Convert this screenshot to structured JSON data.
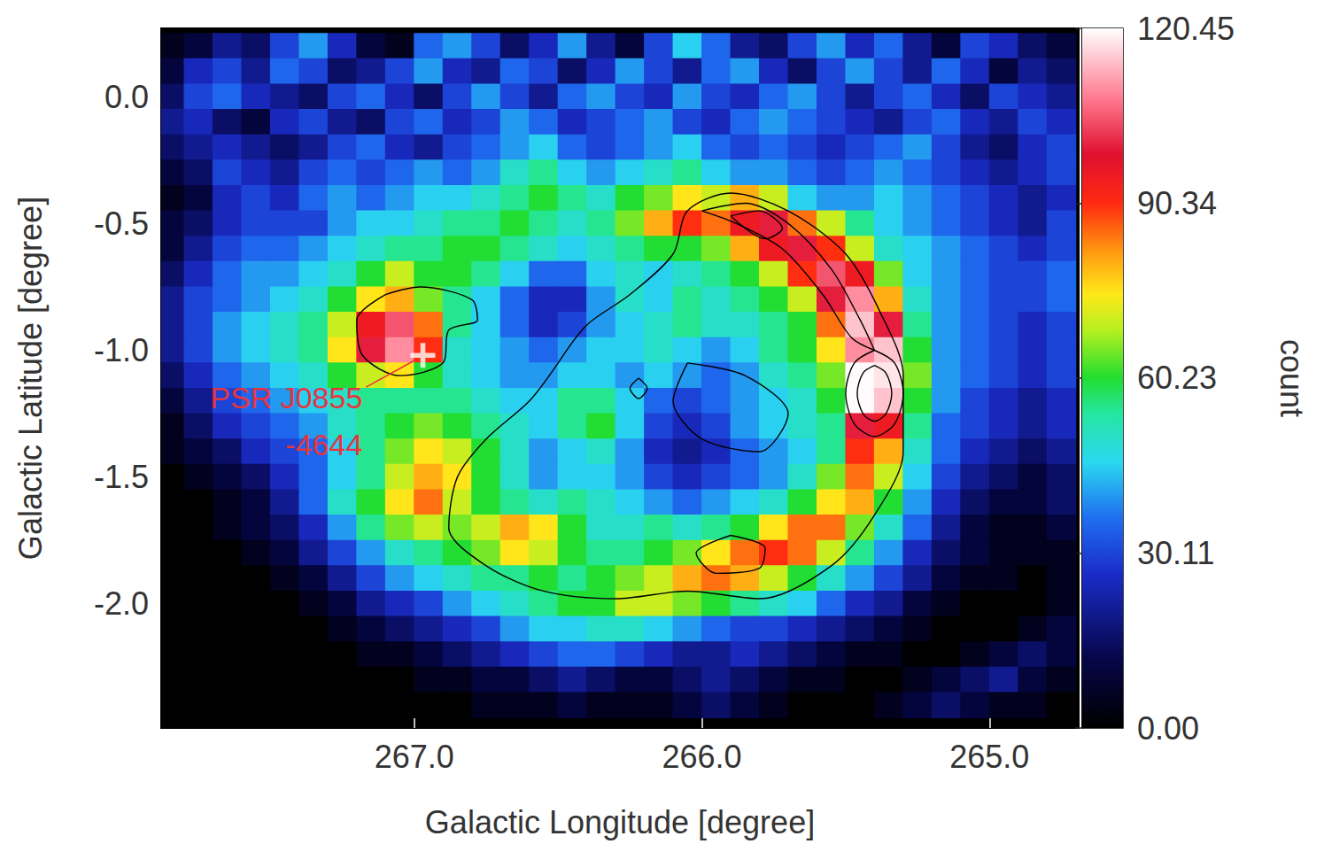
{
  "chart_data": {
    "type": "heatmap",
    "xlabel": "Galactic Longitude [degree]",
    "ylabel": "Galactic Latitude [degree]",
    "xlim": [
      267.88,
      264.69
    ],
    "ylim": [
      -2.49,
      0.27
    ],
    "xticks": [
      {
        "value": 267,
        "label": "267.0"
      },
      {
        "value": 266,
        "label": "266.0"
      },
      {
        "value": 265,
        "label": "265.0"
      }
    ],
    "yticks": [
      {
        "value": 0,
        "label": "0.0"
      },
      -0.5,
      {
        "value": -1,
        "label": "-1.0"
      },
      -1.5,
      {
        "value": -2,
        "label": "-2.0"
      }
    ],
    "grid": false,
    "x": [
      267.85,
      267.75,
      267.65,
      267.55,
      267.45,
      267.35,
      267.25,
      267.15,
      267.05,
      266.95,
      266.85,
      266.75,
      266.65,
      266.55,
      266.45,
      266.35,
      266.25,
      266.15,
      266.05,
      265.95,
      265.85,
      265.75,
      265.65,
      265.55,
      265.45,
      265.35,
      265.25,
      265.15,
      265.05,
      264.95,
      264.85,
      264.75
    ],
    "y": [
      0.2,
      0.1,
      0,
      -0.1,
      -0.2,
      -0.3,
      -0.4,
      -0.5,
      -0.6,
      -0.7,
      -0.8,
      -0.9,
      -1,
      -1.1,
      -1.2,
      -1.3,
      -1.4,
      -1.5,
      -1.6,
      -1.7,
      -1.8,
      -1.9,
      -2,
      -2.1,
      -2.2,
      -2.3,
      -2.4
    ],
    "cells": [
      [
        5,
        10,
        20,
        15,
        30,
        40,
        25,
        10,
        5,
        35,
        40,
        30,
        15,
        25,
        40,
        20,
        10,
        30,
        45,
        35,
        20,
        15,
        30,
        40,
        25,
        35,
        20,
        10,
        30,
        25,
        15,
        10
      ],
      [
        10,
        25,
        30,
        20,
        35,
        30,
        15,
        20,
        30,
        40,
        25,
        20,
        35,
        30,
        15,
        25,
        40,
        30,
        20,
        35,
        40,
        25,
        15,
        30,
        40,
        30,
        20,
        35,
        25,
        10,
        20,
        15
      ],
      [
        15,
        30,
        35,
        25,
        20,
        15,
        30,
        35,
        25,
        15,
        30,
        40,
        30,
        20,
        35,
        40,
        30,
        25,
        40,
        30,
        25,
        35,
        40,
        30,
        20,
        30,
        35,
        25,
        15,
        30,
        25,
        20
      ],
      [
        20,
        25,
        15,
        10,
        25,
        30,
        20,
        15,
        30,
        35,
        25,
        30,
        40,
        35,
        25,
        30,
        35,
        40,
        30,
        25,
        35,
        40,
        35,
        30,
        25,
        20,
        30,
        35,
        25,
        20,
        30,
        25
      ],
      [
        15,
        20,
        25,
        20,
        15,
        20,
        30,
        35,
        25,
        20,
        30,
        35,
        40,
        45,
        35,
        30,
        35,
        40,
        45,
        35,
        30,
        35,
        30,
        25,
        30,
        35,
        40,
        30,
        20,
        15,
        25,
        30
      ],
      [
        10,
        15,
        30,
        25,
        20,
        30,
        35,
        30,
        35,
        40,
        35,
        40,
        50,
        55,
        45,
        40,
        45,
        50,
        55,
        45,
        40,
        40,
        35,
        30,
        35,
        40,
        35,
        30,
        25,
        20,
        25,
        30
      ],
      [
        5,
        10,
        25,
        30,
        25,
        35,
        40,
        35,
        40,
        45,
        45,
        50,
        55,
        60,
        55,
        50,
        60,
        65,
        75,
        70,
        80,
        70,
        45,
        40,
        40,
        45,
        40,
        35,
        30,
        25,
        20,
        25
      ],
      [
        10,
        15,
        25,
        30,
        30,
        30,
        40,
        45,
        45,
        50,
        55,
        55,
        60,
        55,
        50,
        55,
        65,
        80,
        90,
        85,
        95,
        100,
        85,
        70,
        55,
        45,
        40,
        35,
        30,
        25,
        20,
        30
      ],
      [
        10,
        20,
        30,
        35,
        35,
        40,
        45,
        50,
        55,
        55,
        60,
        60,
        55,
        50,
        45,
        50,
        55,
        60,
        60,
        65,
        80,
        95,
        100,
        90,
        70,
        50,
        45,
        40,
        35,
        30,
        25,
        30
      ],
      [
        15,
        25,
        35,
        40,
        40,
        45,
        50,
        60,
        70,
        60,
        60,
        55,
        45,
        35,
        35,
        45,
        50,
        45,
        50,
        55,
        60,
        70,
        90,
        105,
        95,
        65,
        45,
        40,
        35,
        30,
        30,
        35
      ],
      [
        20,
        30,
        35,
        40,
        45,
        50,
        60,
        75,
        80,
        65,
        55,
        45,
        35,
        25,
        25,
        40,
        50,
        45,
        55,
        50,
        55,
        60,
        70,
        100,
        110,
        80,
        50,
        40,
        35,
        30,
        30,
        35
      ],
      [
        20,
        30,
        40,
        45,
        50,
        55,
        70,
        95,
        105,
        85,
        55,
        45,
        35,
        25,
        30,
        40,
        45,
        50,
        55,
        50,
        50,
        55,
        60,
        85,
        115,
        100,
        55,
        40,
        35,
        30,
        25,
        30
      ],
      [
        20,
        30,
        40,
        45,
        50,
        55,
        75,
        100,
        110,
        90,
        50,
        45,
        40,
        35,
        40,
        45,
        45,
        50,
        45,
        40,
        45,
        55,
        60,
        75,
        110,
        115,
        60,
        40,
        35,
        30,
        25,
        30
      ],
      [
        15,
        25,
        35,
        40,
        45,
        50,
        60,
        70,
        75,
        60,
        50,
        45,
        40,
        40,
        45,
        45,
        40,
        45,
        40,
        35,
        40,
        50,
        55,
        65,
        120,
        118,
        65,
        40,
        35,
        30,
        25,
        30
      ],
      [
        10,
        20,
        30,
        35,
        40,
        45,
        50,
        55,
        55,
        55,
        55,
        50,
        45,
        45,
        55,
        55,
        45,
        35,
        30,
        35,
        40,
        45,
        50,
        60,
        120,
        115,
        60,
        40,
        30,
        25,
        20,
        25
      ],
      [
        5,
        15,
        25,
        30,
        35,
        40,
        50,
        55,
        60,
        65,
        60,
        55,
        50,
        45,
        55,
        60,
        45,
        30,
        25,
        30,
        40,
        45,
        50,
        55,
        100,
        95,
        55,
        35,
        30,
        25,
        20,
        25
      ],
      [
        5,
        10,
        15,
        25,
        30,
        35,
        45,
        55,
        65,
        75,
        70,
        60,
        50,
        40,
        45,
        50,
        40,
        25,
        20,
        25,
        35,
        40,
        45,
        55,
        90,
        80,
        50,
        35,
        25,
        20,
        15,
        20
      ],
      [
        0,
        5,
        10,
        15,
        25,
        35,
        45,
        55,
        70,
        80,
        75,
        60,
        50,
        40,
        45,
        45,
        40,
        30,
        25,
        30,
        35,
        40,
        50,
        65,
        85,
        70,
        45,
        30,
        20,
        15,
        10,
        15
      ],
      [
        0,
        0,
        5,
        10,
        20,
        35,
        50,
        60,
        75,
        85,
        70,
        60,
        55,
        50,
        55,
        50,
        45,
        40,
        35,
        40,
        45,
        50,
        60,
        75,
        80,
        60,
        40,
        25,
        15,
        10,
        10,
        15
      ],
      [
        0,
        0,
        5,
        10,
        15,
        25,
        40,
        55,
        65,
        70,
        65,
        70,
        80,
        75,
        60,
        50,
        50,
        55,
        50,
        55,
        60,
        75,
        85,
        85,
        65,
        50,
        35,
        20,
        10,
        5,
        5,
        10
      ],
      [
        0,
        0,
        0,
        5,
        10,
        20,
        30,
        40,
        50,
        55,
        60,
        65,
        75,
        70,
        60,
        55,
        55,
        60,
        65,
        75,
        85,
        90,
        85,
        70,
        55,
        40,
        25,
        15,
        10,
        5,
        5,
        5
      ],
      [
        0,
        0,
        0,
        0,
        5,
        10,
        20,
        30,
        40,
        45,
        50,
        55,
        55,
        60,
        55,
        60,
        65,
        70,
        80,
        85,
        80,
        70,
        60,
        50,
        40,
        30,
        20,
        10,
        5,
        5,
        0,
        5
      ],
      [
        0,
        0,
        0,
        0,
        0,
        5,
        10,
        20,
        25,
        30,
        40,
        45,
        50,
        55,
        60,
        60,
        70,
        70,
        65,
        60,
        55,
        50,
        45,
        35,
        25,
        20,
        10,
        5,
        0,
        0,
        0,
        5
      ],
      [
        0,
        0,
        0,
        0,
        0,
        0,
        5,
        10,
        15,
        20,
        25,
        30,
        40,
        45,
        45,
        50,
        50,
        45,
        40,
        35,
        30,
        30,
        25,
        20,
        15,
        10,
        5,
        0,
        0,
        0,
        5,
        10
      ],
      [
        0,
        0,
        0,
        0,
        0,
        0,
        0,
        5,
        5,
        10,
        15,
        20,
        25,
        30,
        35,
        35,
        30,
        25,
        20,
        20,
        25,
        20,
        15,
        10,
        5,
        5,
        0,
        0,
        5,
        10,
        15,
        10
      ],
      [
        0,
        0,
        0,
        0,
        0,
        0,
        0,
        0,
        0,
        5,
        5,
        10,
        10,
        15,
        20,
        15,
        10,
        10,
        15,
        20,
        15,
        10,
        5,
        5,
        0,
        0,
        5,
        10,
        15,
        20,
        10,
        5
      ],
      [
        0,
        0,
        0,
        0,
        0,
        0,
        0,
        0,
        0,
        0,
        0,
        5,
        5,
        5,
        10,
        5,
        5,
        5,
        10,
        15,
        10,
        5,
        0,
        0,
        0,
        5,
        10,
        15,
        10,
        5,
        5,
        0
      ]
    ],
    "colorbar": {
      "label": "count",
      "range": [
        0,
        120.45
      ],
      "ticks": [
        {
          "value": 0,
          "label": "0.00"
        },
        30.11,
        60.23,
        90.34,
        120.45
      ]
    },
    "contours": [
      [
        [
          266.5,
          -1.05
        ],
        [
          266.6,
          -1.2
        ],
        [
          266.75,
          -1.35
        ],
        [
          266.85,
          -1.5
        ],
        [
          266.88,
          -1.7
        ],
        [
          266.75,
          -1.85
        ],
        [
          266.55,
          -1.95
        ],
        [
          266.3,
          -1.98
        ],
        [
          266.05,
          -1.95
        ],
        [
          265.8,
          -1.98
        ],
        [
          265.55,
          -1.85
        ],
        [
          265.4,
          -1.65
        ],
        [
          265.3,
          -1.4
        ],
        [
          265.3,
          -1.1
        ],
        [
          265.38,
          -0.85
        ],
        [
          265.5,
          -0.62
        ],
        [
          265.7,
          -0.45
        ],
        [
          265.9,
          -0.38
        ],
        [
          266.05,
          -0.45
        ],
        [
          266.1,
          -0.62
        ],
        [
          266.25,
          -0.78
        ],
        [
          266.4,
          -0.9
        ],
        [
          266.5,
          -1.05
        ]
      ],
      [
        [
          266.0,
          -0.45
        ],
        [
          265.85,
          -0.42
        ],
        [
          265.7,
          -0.5
        ],
        [
          265.55,
          -0.68
        ],
        [
          265.45,
          -0.88
        ],
        [
          265.4,
          -1.0
        ],
        [
          265.48,
          -0.95
        ],
        [
          265.58,
          -0.78
        ],
        [
          265.72,
          -0.6
        ],
        [
          265.88,
          -0.5
        ],
        [
          266.0,
          -0.45
        ]
      ],
      [
        [
          265.9,
          -0.47
        ],
        [
          265.8,
          -0.45
        ],
        [
          265.72,
          -0.52
        ],
        [
          265.78,
          -0.56
        ],
        [
          265.9,
          -0.47
        ]
      ],
      [
        [
          265.4,
          -1.0
        ],
        [
          265.33,
          -1.05
        ],
        [
          265.3,
          -1.17
        ],
        [
          265.33,
          -1.29
        ],
        [
          265.4,
          -1.34
        ],
        [
          265.47,
          -1.29
        ],
        [
          265.5,
          -1.17
        ],
        [
          265.47,
          -1.05
        ],
        [
          265.4,
          -1.0
        ]
      ],
      [
        [
          265.4,
          -1.06
        ],
        [
          265.36,
          -1.09
        ],
        [
          265.34,
          -1.17
        ],
        [
          265.36,
          -1.25
        ],
        [
          265.4,
          -1.28
        ],
        [
          265.44,
          -1.25
        ],
        [
          265.46,
          -1.17
        ],
        [
          265.44,
          -1.09
        ],
        [
          265.4,
          -1.06
        ]
      ],
      [
        [
          266.22,
          -1.11
        ],
        [
          266.19,
          -1.15
        ],
        [
          266.22,
          -1.19
        ],
        [
          266.25,
          -1.15
        ],
        [
          266.22,
          -1.11
        ]
      ],
      [
        [
          267.1,
          -0.78
        ],
        [
          266.98,
          -0.75
        ],
        [
          266.8,
          -0.8
        ],
        [
          266.78,
          -0.88
        ],
        [
          266.88,
          -0.92
        ],
        [
          266.9,
          -1.05
        ],
        [
          267.05,
          -1.1
        ],
        [
          267.18,
          -1.02
        ],
        [
          267.2,
          -0.88
        ],
        [
          267.1,
          -0.78
        ]
      ],
      [
        [
          265.9,
          -1.73
        ],
        [
          265.78,
          -1.78
        ],
        [
          265.8,
          -1.86
        ],
        [
          265.95,
          -1.88
        ],
        [
          266.02,
          -1.8
        ],
        [
          265.9,
          -1.73
        ]
      ],
      [
        [
          266.05,
          -1.05
        ],
        [
          265.85,
          -1.1
        ],
        [
          265.7,
          -1.25
        ],
        [
          265.8,
          -1.4
        ],
        [
          266.0,
          -1.35
        ],
        [
          266.1,
          -1.2
        ],
        [
          266.05,
          -1.05
        ]
      ]
    ],
    "annotations": [
      {
        "text": [
          "PSR J0855",
          "-4644"
        ],
        "x": 267.18,
        "y": -1.28,
        "target": [
          266.97,
          -1.02
        ],
        "marker": "plus",
        "color": "#e8343c"
      }
    ]
  }
}
